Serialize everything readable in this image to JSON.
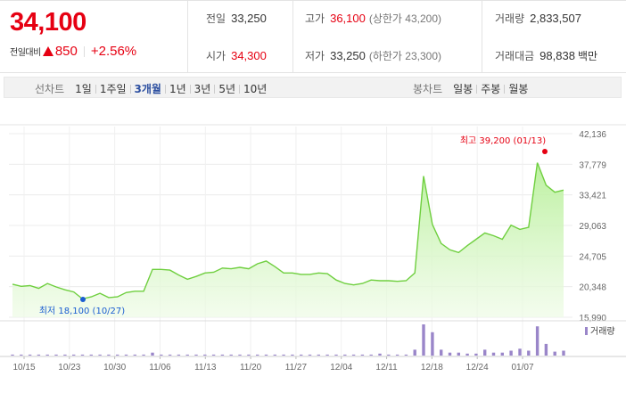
{
  "summary": {
    "price": "34,100",
    "change_label": "전일대비",
    "change_value": "850",
    "change_pct": "+2.56%",
    "stats": {
      "prev_close": {
        "label": "전일",
        "value": "33,250"
      },
      "open": {
        "label": "시가",
        "value": "34,300"
      },
      "high": {
        "label": "고가",
        "value": "36,100",
        "sub": "(상한가 43,200)"
      },
      "low": {
        "label": "저가",
        "value": "33,250",
        "sub": "(하한가 23,300)"
      },
      "volume": {
        "label": "거래량",
        "value": "2,833,507"
      },
      "amount": {
        "label": "거래대금",
        "value": "98,838",
        "unit": "백만"
      }
    },
    "colors": {
      "up": "#e60012",
      "active_tab": "#2c4fa0"
    }
  },
  "tabs": {
    "line_title": "선차트",
    "line_periods": [
      "1일",
      "1주일",
      "3개월",
      "1년",
      "3년",
      "5년",
      "10년"
    ],
    "active_period": "3개월",
    "candle_title": "봉차트",
    "candle_periods": [
      "일봉",
      "주봉",
      "월봉"
    ]
  },
  "chart_data": {
    "type": "area",
    "y_ticks": [
      "42,136",
      "37,779",
      "33,421",
      "29,063",
      "24,705",
      "20,348",
      "15,990"
    ],
    "ylim": [
      15990,
      42136
    ],
    "x_tick_labels": [
      "10/15",
      "10/23",
      "10/30",
      "11/06",
      "11/13",
      "11/20",
      "11/27",
      "12/04",
      "12/11",
      "12/18",
      "12/24",
      "01/07"
    ],
    "series": [
      {
        "values": [
          20700,
          20400,
          20500,
          20100,
          20800,
          20300,
          19900,
          19600,
          18600,
          18900,
          19400,
          18800,
          18900,
          19500,
          19700,
          19700,
          22800,
          22800,
          22700,
          22000,
          21400,
          21800,
          22300,
          22400,
          23000,
          22900,
          23100,
          22900,
          23600,
          24000,
          23200,
          22300,
          22300,
          22100,
          22100,
          22300,
          22200,
          21300,
          20800,
          20600,
          20800,
          21300,
          21200,
          21200,
          21100,
          21200,
          22300,
          36100,
          29200,
          26500,
          25600,
          25200,
          26200,
          27100,
          28000,
          27600,
          27100,
          29100,
          28500,
          28800,
          38000,
          34800,
          33800,
          34100
        ]
      }
    ],
    "high_annotation": "최고 39,200 (01/13)",
    "low_annotation": "최저 18,100 (10/27)",
    "volume": {
      "legend": "거래량",
      "values": [
        1,
        1,
        1,
        1,
        1,
        1,
        1,
        1,
        1,
        1,
        1,
        1,
        1,
        1,
        1,
        1,
        3,
        1,
        1,
        1,
        1,
        1,
        1,
        1,
        1,
        1,
        1,
        1,
        1,
        1,
        1,
        1,
        1,
        1,
        1,
        1,
        1,
        1,
        1,
        1,
        1,
        1,
        2,
        1,
        1,
        1,
        6,
        32,
        24,
        6,
        3,
        3,
        2,
        2,
        6,
        3,
        3,
        5,
        7,
        5,
        30,
        12,
        4,
        5
      ]
    },
    "colors": {
      "line": "#6fcf3f",
      "fill": "#b8f09a",
      "high_marker": "#e60012",
      "low_marker": "#1b5ed1",
      "volume_bar": "#9a86c9"
    }
  }
}
